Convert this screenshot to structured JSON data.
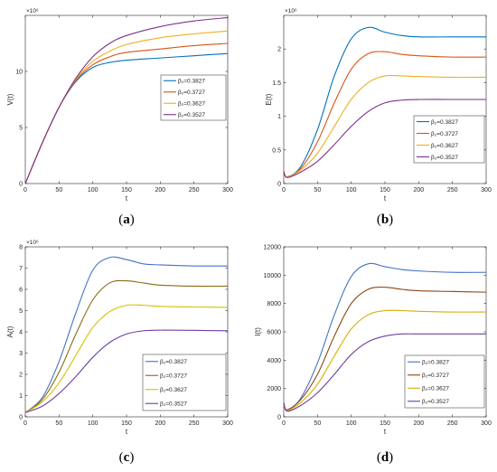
{
  "chart_data": [
    {
      "type": "line",
      "caption": "a",
      "xlabel": "t",
      "ylabel": "V(t)",
      "exponent_label": "×10⁶",
      "xlim": [
        0,
        300
      ],
      "ylim": [
        0,
        15000000
      ],
      "xticks": [
        "0",
        "50",
        "100",
        "150",
        "200",
        "250",
        "300"
      ],
      "yticks": [
        "0",
        "5",
        "10"
      ],
      "ytick_values": [
        0,
        5000000,
        10000000
      ],
      "legend_position": "center-right",
      "colors": [
        "#0072BD",
        "#D95319",
        "#EDB120",
        "#7E2F8E"
      ],
      "x": [
        0,
        25,
        50,
        75,
        100,
        125,
        150,
        200,
        250,
        300
      ],
      "series": [
        {
          "name": "β₂=0.3827",
          "values": [
            0,
            3600000,
            6800000,
            9100000,
            10350000,
            10800000,
            11000000,
            11200000,
            11400000,
            11600000
          ]
        },
        {
          "name": "β₂=0.3727",
          "values": [
            0,
            3600000,
            6800000,
            9200000,
            10600000,
            11300000,
            11700000,
            12000000,
            12300000,
            12500000
          ]
        },
        {
          "name": "β₂=0.3627",
          "values": [
            0,
            3600000,
            6800000,
            9300000,
            10900000,
            11800000,
            12400000,
            13000000,
            13350000,
            13600000
          ]
        },
        {
          "name": "β₂=0.3527",
          "values": [
            0,
            3600000,
            6800000,
            9400000,
            11300000,
            12500000,
            13200000,
            14000000,
            14500000,
            14800000
          ]
        }
      ]
    },
    {
      "type": "line",
      "caption": "b",
      "xlabel": "t",
      "ylabel": "E(t)",
      "exponent_label": "×10⁶",
      "xlim": [
        0,
        300
      ],
      "ylim": [
        0,
        2500000
      ],
      "xticks": [
        "0",
        "50",
        "100",
        "150",
        "200",
        "250",
        "300"
      ],
      "yticks": [
        "0",
        "0.5",
        "1",
        "1.5",
        "2"
      ],
      "ytick_values": [
        0,
        500000,
        1000000,
        1500000,
        2000000
      ],
      "legend_position": "lower-right",
      "colors": [
        "#0072BD",
        "#D95319",
        "#EDB120",
        "#7E2F8E"
      ],
      "x": [
        0,
        5,
        25,
        50,
        75,
        100,
        125,
        150,
        175,
        200,
        250,
        300
      ],
      "series": [
        {
          "name": "β₂=0.3827",
          "values": [
            180000,
            100000,
            250000,
            800000,
            1600000,
            2150000,
            2320000,
            2250000,
            2200000,
            2180000,
            2180000,
            2180000
          ]
        },
        {
          "name": "β₂=0.3727",
          "values": [
            180000,
            100000,
            220000,
            620000,
            1200000,
            1700000,
            1930000,
            1960000,
            1920000,
            1900000,
            1880000,
            1880000
          ]
        },
        {
          "name": "β₂=0.3627",
          "values": [
            180000,
            100000,
            200000,
            450000,
            850000,
            1250000,
            1500000,
            1600000,
            1600000,
            1590000,
            1580000,
            1580000
          ]
        },
        {
          "name": "β₂=0.3527",
          "values": [
            180000,
            90000,
            170000,
            330000,
            580000,
            850000,
            1070000,
            1200000,
            1240000,
            1250000,
            1250000,
            1250000
          ]
        }
      ]
    },
    {
      "type": "line",
      "caption": "c",
      "xlabel": "t",
      "ylabel": "A(t)",
      "exponent_label": "×10⁶",
      "xlim": [
        0,
        300
      ],
      "ylim": [
        0,
        8000000
      ],
      "xticks": [
        "0",
        "50",
        "100",
        "150",
        "200",
        "250",
        "300"
      ],
      "yticks": [
        "0",
        "1",
        "2",
        "3",
        "4",
        "5",
        "6",
        "7",
        "8"
      ],
      "ytick_values": [
        0,
        1000000,
        2000000,
        3000000,
        4000000,
        5000000,
        6000000,
        7000000,
        8000000
      ],
      "legend_position": "lower-right",
      "colors": [
        "#4472C4",
        "#8B6914",
        "#D4C000",
        "#6E3FA0"
      ],
      "x": [
        0,
        25,
        50,
        75,
        100,
        125,
        150,
        175,
        200,
        250,
        300
      ],
      "series": [
        {
          "name": "β₂=0.3827",
          "values": [
            200000,
            900000,
            2600000,
            4900000,
            6900000,
            7500000,
            7400000,
            7200000,
            7150000,
            7100000,
            7100000
          ]
        },
        {
          "name": "β₂=0.3727",
          "values": [
            200000,
            800000,
            2100000,
            3900000,
            5500000,
            6300000,
            6400000,
            6300000,
            6200000,
            6150000,
            6150000
          ]
        },
        {
          "name": "β₂=0.3627",
          "values": [
            200000,
            700000,
            1600000,
            2900000,
            4200000,
            4950000,
            5250000,
            5250000,
            5200000,
            5170000,
            5150000
          ]
        },
        {
          "name": "β₂=0.3527",
          "values": [
            200000,
            500000,
            1100000,
            1900000,
            2800000,
            3500000,
            3900000,
            4050000,
            4080000,
            4070000,
            4050000
          ]
        }
      ]
    },
    {
      "type": "line",
      "caption": "d",
      "xlabel": "t",
      "ylabel": "I(t)",
      "exponent_label": "",
      "xlim": [
        0,
        300
      ],
      "ylim": [
        0,
        12000
      ],
      "xticks": [
        "0",
        "50",
        "100",
        "150",
        "200",
        "250",
        "300"
      ],
      "yticks": [
        "0",
        "2000",
        "4000",
        "6000",
        "8000",
        "10000",
        "12000"
      ],
      "ytick_values": [
        0,
        2000,
        4000,
        6000,
        8000,
        10000,
        12000
      ],
      "legend_position": "lower-right",
      "colors": [
        "#4472C4",
        "#8B4513",
        "#D4B000",
        "#6E3FA0"
      ],
      "x": [
        0,
        5,
        25,
        50,
        75,
        100,
        125,
        150,
        175,
        200,
        250,
        300
      ],
      "series": [
        {
          "name": "β₂=0.3827",
          "values": [
            1000,
            500,
            1300,
            3800,
            7200,
            9900,
            10800,
            10600,
            10400,
            10300,
            10200,
            10200
          ]
        },
        {
          "name": "β₂=0.3727",
          "values": [
            1000,
            500,
            1200,
            3000,
            5700,
            8000,
            9000,
            9150,
            9000,
            8900,
            8850,
            8800
          ]
        },
        {
          "name": "β₂=0.3627",
          "values": [
            1000,
            450,
            1000,
            2300,
            4300,
            6200,
            7200,
            7500,
            7500,
            7450,
            7400,
            7400
          ]
        },
        {
          "name": "β₂=0.3527",
          "values": [
            1000,
            400,
            800,
            1700,
            3000,
            4400,
            5300,
            5700,
            5850,
            5850,
            5850,
            5850
          ]
        }
      ]
    }
  ]
}
